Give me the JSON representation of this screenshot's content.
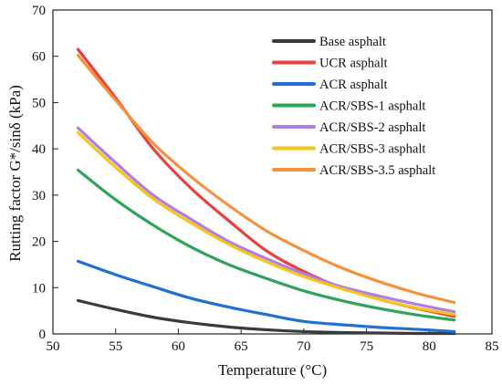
{
  "chart_data": {
    "type": "line",
    "xlabel": "Temperature (°C)",
    "ylabel": "Rutting factor G*/sinδ (kPa)",
    "xlim": [
      50,
      85
    ],
    "ylim": [
      0,
      70
    ],
    "xticks": [
      50,
      55,
      60,
      65,
      70,
      75,
      80,
      85
    ],
    "yticks": [
      0,
      10,
      20,
      30,
      40,
      50,
      60,
      70
    ],
    "legend_position": "top-right",
    "x": [
      52,
      55,
      58,
      61,
      64,
      67,
      70,
      73,
      76,
      79,
      82
    ],
    "series": [
      {
        "name": "Base asphalt",
        "color": "#3a3a3a",
        "values": [
          7.2,
          5.3,
          3.6,
          2.4,
          1.5,
          0.9,
          0.5,
          0.3,
          0.2,
          0.1,
          0.1
        ]
      },
      {
        "name": "UCR asphalt",
        "color": "#e8403a",
        "values": [
          61.5,
          51.0,
          40.0,
          31.5,
          24.5,
          18.0,
          13.5,
          10.0,
          7.5,
          5.5,
          3.8
        ]
      },
      {
        "name": "ACR asphalt",
        "color": "#1f6fd4",
        "values": [
          15.7,
          12.8,
          10.2,
          7.7,
          5.8,
          4.2,
          2.7,
          2.0,
          1.4,
          1.0,
          0.5
        ]
      },
      {
        "name": "ACR/SBS-1 asphalt",
        "color": "#2ea45a",
        "values": [
          35.4,
          29.0,
          23.5,
          18.8,
          15.0,
          12.0,
          9.3,
          7.2,
          5.5,
          4.1,
          3.0
        ]
      },
      {
        "name": "ACR/SBS-2 asphalt",
        "color": "#b07ee8",
        "values": [
          44.5,
          37.0,
          30.0,
          24.8,
          20.0,
          16.3,
          13.0,
          10.2,
          8.2,
          6.4,
          4.8
        ]
      },
      {
        "name": "ACR/SBS-3 asphalt",
        "color": "#f5c518",
        "values": [
          43.5,
          36.0,
          29.2,
          24.0,
          19.4,
          15.6,
          12.4,
          9.8,
          7.5,
          5.6,
          4.2
        ]
      },
      {
        "name": "ACR/SBS-3.5 asphalt",
        "color": "#f4923c",
        "values": [
          60.2,
          50.5,
          41.2,
          34.0,
          27.8,
          22.3,
          18.0,
          14.3,
          11.3,
          8.8,
          6.8
        ]
      }
    ]
  }
}
